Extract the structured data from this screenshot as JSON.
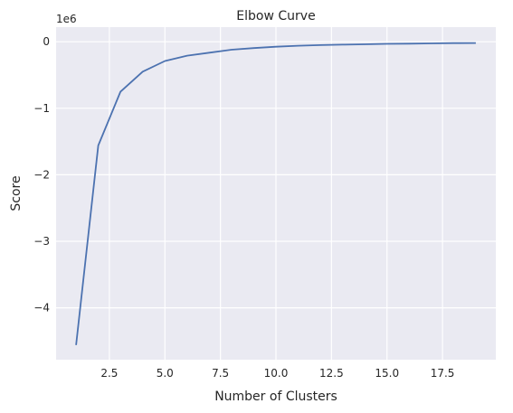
{
  "chart_data": {
    "type": "line",
    "title": "Elbow Curve",
    "xlabel": "Number of Clusters",
    "ylabel": "Score",
    "offset_text": "1e6",
    "xlim": [
      0.1,
      19.9
    ],
    "ylim": [
      -4.78,
      0.22
    ],
    "xticks": [
      2.5,
      5.0,
      7.5,
      10.0,
      12.5,
      15.0,
      17.5
    ],
    "xtick_labels": [
      "2.5",
      "5.0",
      "7.5",
      "10.0",
      "12.5",
      "15.0",
      "17.5"
    ],
    "yticks": [
      0,
      -1,
      -2,
      -3,
      -4
    ],
    "ytick_labels": [
      "0",
      "−1",
      "−2",
      "−3",
      "−4"
    ],
    "grid": true,
    "colors": {
      "line": "#4c72b0",
      "background": "#eaeaf2",
      "grid": "#ffffff"
    },
    "series": [
      {
        "x": [
          1,
          2,
          3,
          4,
          5,
          6,
          7,
          8,
          9,
          10,
          11,
          12,
          13,
          14,
          15,
          16,
          17,
          18,
          19
        ],
        "values": [
          -4.56,
          -1.56,
          -0.75,
          -0.45,
          -0.29,
          -0.21,
          -0.165,
          -0.12,
          -0.095,
          -0.075,
          -0.06,
          -0.05,
          -0.043,
          -0.038,
          -0.032,
          -0.028,
          -0.024,
          -0.021,
          -0.019
        ]
      }
    ]
  }
}
